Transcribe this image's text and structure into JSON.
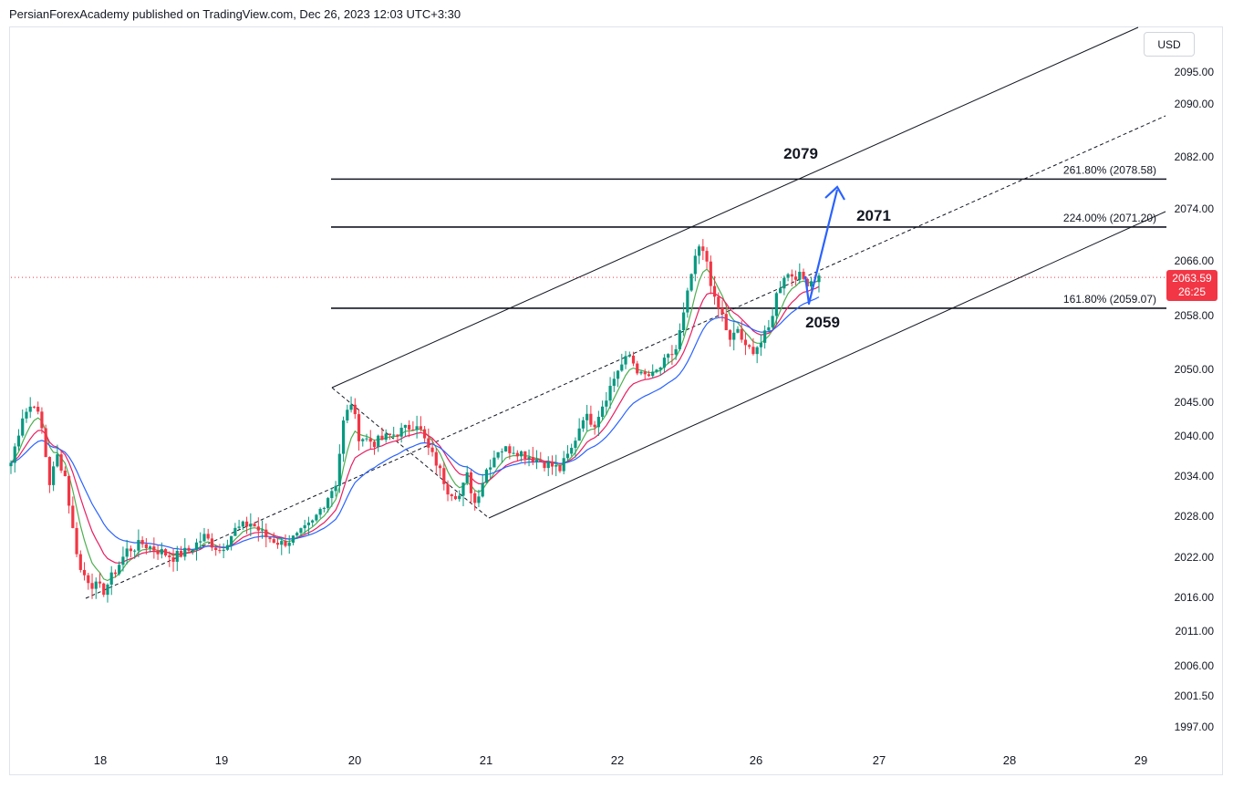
{
  "header": {
    "publisher_line": "PersianForexAcademy published on TradingView.com, Dec 26, 2023 12:03 UTC+3:30"
  },
  "currency_button": "USD",
  "last_price": {
    "value": "2063.59",
    "countdown": "26:25"
  },
  "colors": {
    "up": "#089981",
    "down": "#f23645",
    "ma_fast": "#4caf50",
    "ma_mid": "#e91e63",
    "ma_slow": "#2962ff",
    "arrow": "#2962ff"
  },
  "chart_data": {
    "type": "candlestick",
    "yticks": [
      "2095.00",
      "2090.00",
      "2082.00",
      "2074.00",
      "2066.00",
      "2058.00",
      "2050.00",
      "2045.00",
      "2040.00",
      "2034.00",
      "2028.00",
      "2022.00",
      "2016.00",
      "2011.00",
      "2006.00",
      "2001.50",
      "1997.00"
    ],
    "xticks": [
      "18",
      "19",
      "20",
      "21",
      "22",
      "26",
      "27",
      "28",
      "29"
    ],
    "fib_levels": [
      {
        "label": "261.80% (2078.58)",
        "price": 2078.58
      },
      {
        "label": "224.00% (2071.20)",
        "price": 2071.2
      },
      {
        "label": "161.80% (2059.07)",
        "price": 2059.07
      }
    ],
    "annotations": [
      "2079",
      "2071",
      "2059"
    ],
    "price_path": [
      [
        0,
        2036
      ],
      [
        3,
        2043
      ],
      [
        6,
        2045
      ],
      [
        8,
        2041
      ],
      [
        10,
        2033
      ],
      [
        12,
        2037
      ],
      [
        14,
        2034
      ],
      [
        16,
        2026
      ],
      [
        18,
        2020
      ],
      [
        21,
        2018
      ],
      [
        24,
        2017
      ],
      [
        27,
        2020
      ],
      [
        30,
        2023
      ],
      [
        34,
        2024
      ],
      [
        38,
        2023
      ],
      [
        42,
        2022
      ],
      [
        46,
        2023
      ],
      [
        50,
        2025
      ],
      [
        54,
        2023
      ],
      [
        58,
        2026
      ],
      [
        62,
        2027
      ],
      [
        66,
        2025
      ],
      [
        70,
        2024
      ],
      [
        74,
        2025
      ],
      [
        78,
        2027
      ],
      [
        81,
        2030
      ],
      [
        84,
        2033
      ],
      [
        86,
        2042
      ],
      [
        88,
        2045
      ],
      [
        90,
        2040
      ],
      [
        94,
        2039
      ],
      [
        98,
        2040
      ],
      [
        102,
        2041
      ],
      [
        105,
        2042
      ],
      [
        108,
        2038
      ],
      [
        110,
        2036
      ],
      [
        113,
        2032
      ],
      [
        116,
        2031
      ],
      [
        118,
        2034
      ],
      [
        120,
        2030
      ],
      [
        123,
        2035
      ],
      [
        126,
        2038
      ],
      [
        130,
        2038
      ],
      [
        134,
        2037
      ],
      [
        138,
        2036
      ],
      [
        142,
        2035
      ],
      [
        145,
        2038
      ],
      [
        148,
        2043
      ],
      [
        151,
        2042
      ],
      [
        154,
        2046
      ],
      [
        157,
        2050
      ],
      [
        160,
        2052
      ],
      [
        163,
        2049
      ],
      [
        166,
        2049
      ],
      [
        169,
        2051
      ],
      [
        172,
        2053
      ],
      [
        174,
        2058
      ],
      [
        176,
        2064
      ],
      [
        178,
        2068
      ],
      [
        180,
        2066
      ],
      [
        182,
        2060
      ],
      [
        184,
        2058
      ],
      [
        186,
        2054
      ],
      [
        188,
        2056
      ],
      [
        190,
        2053
      ],
      [
        192,
        2053
      ],
      [
        194,
        2054
      ],
      [
        196,
        2056
      ],
      [
        198,
        2061
      ],
      [
        200,
        2064
      ],
      [
        203,
        2064
      ],
      [
        206,
        2063
      ],
      [
        209,
        2063.6
      ]
    ]
  }
}
